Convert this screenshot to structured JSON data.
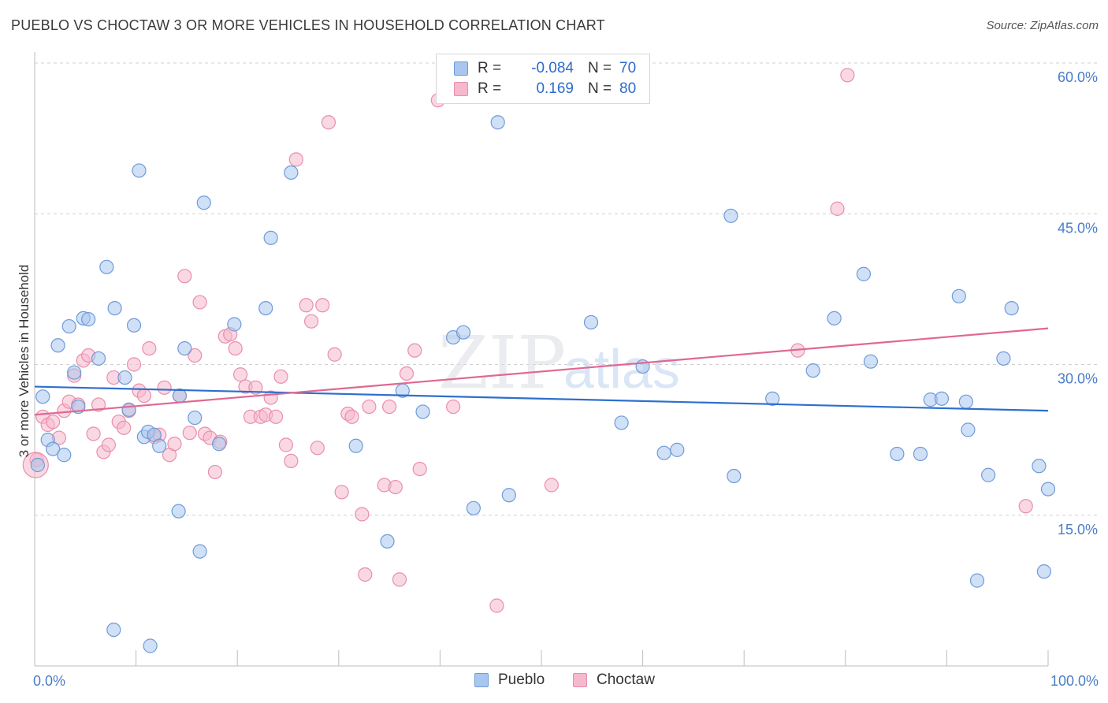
{
  "title": "PUEBLO VS CHOCTAW 3 OR MORE VEHICLES IN HOUSEHOLD CORRELATION CHART",
  "source": "Source: ZipAtlas.com",
  "watermark": {
    "zip": "ZIP",
    "atlas": "atlas"
  },
  "legend": {
    "pueblo": {
      "r_label": "R =",
      "r_value": "-0.084",
      "n_label": "N =",
      "n_value": "70"
    },
    "choctaw": {
      "r_label": "R =",
      "r_value": "0.169",
      "n_label": "N =",
      "n_value": "80"
    }
  },
  "bottom_legend": {
    "pueblo": "Pueblo",
    "choctaw": "Choctaw"
  },
  "colors": {
    "pueblo_fill": "#a9c6ef",
    "pueblo_stroke": "#6f9bd8",
    "pueblo_line": "#2e6fce",
    "choctaw_fill": "#f5b8cc",
    "choctaw_stroke": "#e98eab",
    "choctaw_line": "#e06892",
    "axis_text": "#4a7cc7",
    "grid": "#d0d0d0"
  },
  "chart_data": {
    "type": "scatter",
    "title": "PUEBLO VS CHOCTAW 3 OR MORE VEHICLES IN HOUSEHOLD CORRELATION CHART",
    "xlabel": "",
    "ylabel": "3 or more Vehicles in Household",
    "xlim": [
      0,
      100
    ],
    "ylim": [
      0,
      60
    ],
    "x_tick_labels": [
      "0.0%",
      "100.0%"
    ],
    "y_ticks": [
      15,
      30,
      45,
      60
    ],
    "y_tick_labels": [
      "15.0%",
      "30.0%",
      "45.0%",
      "60.0%"
    ],
    "series": [
      {
        "name": "Pueblo",
        "trend": {
          "x": [
            0,
            100
          ],
          "y": [
            27.8,
            25.4
          ]
        },
        "points": [
          [
            0.3,
            20.0
          ],
          [
            0.8,
            26.8
          ],
          [
            1.3,
            22.5
          ],
          [
            1.8,
            21.6
          ],
          [
            2.3,
            31.9
          ],
          [
            2.9,
            21.0
          ],
          [
            3.4,
            33.8
          ],
          [
            3.9,
            29.2
          ],
          [
            4.3,
            25.8
          ],
          [
            4.8,
            34.6
          ],
          [
            5.3,
            34.5
          ],
          [
            6.3,
            30.6
          ],
          [
            7.1,
            39.7
          ],
          [
            7.9,
            35.6
          ],
          [
            8.9,
            28.7
          ],
          [
            9.3,
            25.5
          ],
          [
            9.8,
            33.9
          ],
          [
            10.3,
            49.3
          ],
          [
            10.8,
            22.8
          ],
          [
            11.2,
            23.3
          ],
          [
            11.8,
            23.0
          ],
          [
            12.3,
            21.9
          ],
          [
            14.3,
            26.9
          ],
          [
            14.8,
            31.6
          ],
          [
            15.8,
            24.7
          ],
          [
            16.7,
            46.1
          ],
          [
            18.2,
            22.1
          ],
          [
            19.7,
            34.0
          ],
          [
            22.8,
            35.6
          ],
          [
            23.3,
            42.6
          ],
          [
            25.3,
            49.1
          ],
          [
            7.8,
            3.6
          ],
          [
            11.4,
            2.0
          ],
          [
            14.2,
            15.4
          ],
          [
            16.3,
            11.4
          ],
          [
            31.7,
            21.9
          ],
          [
            34.8,
            12.4
          ],
          [
            36.3,
            27.4
          ],
          [
            38.3,
            25.3
          ],
          [
            41.3,
            32.7
          ],
          [
            42.3,
            33.2
          ],
          [
            43.3,
            15.7
          ],
          [
            45.7,
            54.1
          ],
          [
            46.8,
            17.0
          ],
          [
            54.9,
            34.2
          ],
          [
            57.9,
            24.2
          ],
          [
            60.0,
            29.8
          ],
          [
            62.1,
            21.2
          ],
          [
            63.4,
            21.5
          ],
          [
            68.7,
            44.8
          ],
          [
            69.0,
            18.9
          ],
          [
            72.8,
            26.6
          ],
          [
            76.8,
            29.4
          ],
          [
            78.9,
            34.6
          ],
          [
            81.8,
            39.0
          ],
          [
            82.5,
            30.3
          ],
          [
            85.1,
            21.1
          ],
          [
            87.4,
            21.1
          ],
          [
            88.4,
            26.5
          ],
          [
            89.5,
            26.6
          ],
          [
            91.2,
            36.8
          ],
          [
            91.9,
            26.3
          ],
          [
            92.1,
            23.5
          ],
          [
            93.0,
            8.5
          ],
          [
            94.1,
            19.0
          ],
          [
            95.6,
            30.6
          ],
          [
            96.4,
            35.6
          ],
          [
            99.1,
            19.9
          ],
          [
            99.6,
            9.4
          ],
          [
            100.0,
            17.6
          ]
        ]
      },
      {
        "name": "Choctaw",
        "trend": {
          "x": [
            0,
            100
          ],
          "y": [
            25.0,
            33.6
          ]
        },
        "points": [
          [
            0.2,
            20.5
          ],
          [
            0.8,
            24.8
          ],
          [
            1.3,
            24.0
          ],
          [
            1.8,
            24.3
          ],
          [
            2.4,
            22.7
          ],
          [
            2.9,
            25.4
          ],
          [
            3.4,
            26.3
          ],
          [
            3.9,
            28.9
          ],
          [
            4.3,
            26.0
          ],
          [
            4.8,
            30.4
          ],
          [
            5.3,
            30.9
          ],
          [
            5.8,
            23.1
          ],
          [
            6.3,
            26.0
          ],
          [
            6.8,
            21.3
          ],
          [
            7.3,
            22.0
          ],
          [
            7.8,
            28.7
          ],
          [
            8.3,
            24.3
          ],
          [
            8.8,
            23.7
          ],
          [
            9.3,
            25.4
          ],
          [
            9.8,
            30.0
          ],
          [
            10.3,
            27.4
          ],
          [
            10.8,
            26.9
          ],
          [
            11.3,
            31.6
          ],
          [
            11.8,
            22.8
          ],
          [
            12.3,
            23.0
          ],
          [
            12.8,
            27.7
          ],
          [
            13.3,
            21.0
          ],
          [
            13.8,
            22.1
          ],
          [
            14.3,
            26.9
          ],
          [
            14.8,
            38.8
          ],
          [
            15.3,
            23.2
          ],
          [
            15.8,
            30.9
          ],
          [
            16.3,
            36.2
          ],
          [
            16.8,
            23.1
          ],
          [
            17.3,
            22.7
          ],
          [
            17.8,
            19.3
          ],
          [
            18.3,
            22.3
          ],
          [
            18.8,
            32.8
          ],
          [
            19.3,
            33.0
          ],
          [
            19.8,
            31.6
          ],
          [
            20.3,
            29.0
          ],
          [
            20.8,
            27.8
          ],
          [
            21.3,
            24.8
          ],
          [
            21.8,
            27.7
          ],
          [
            22.3,
            24.8
          ],
          [
            22.8,
            25.0
          ],
          [
            23.3,
            26.7
          ],
          [
            23.8,
            24.8
          ],
          [
            24.3,
            28.8
          ],
          [
            24.8,
            22.0
          ],
          [
            25.3,
            20.4
          ],
          [
            25.8,
            50.4
          ],
          [
            26.8,
            35.9
          ],
          [
            27.3,
            34.3
          ],
          [
            27.9,
            21.7
          ],
          [
            28.4,
            35.9
          ],
          [
            29.0,
            54.1
          ],
          [
            29.6,
            31.0
          ],
          [
            30.3,
            17.3
          ],
          [
            30.9,
            25.1
          ],
          [
            31.3,
            24.8
          ],
          [
            32.3,
            15.1
          ],
          [
            32.6,
            9.1
          ],
          [
            33.0,
            25.8
          ],
          [
            34.5,
            18.0
          ],
          [
            35.0,
            25.8
          ],
          [
            35.6,
            17.8
          ],
          [
            36.0,
            8.6
          ],
          [
            36.7,
            29.1
          ],
          [
            37.5,
            31.4
          ],
          [
            38.0,
            19.6
          ],
          [
            39.8,
            56.3
          ],
          [
            41.3,
            25.8
          ],
          [
            45.6,
            6.0
          ],
          [
            51.0,
            18.0
          ],
          [
            75.3,
            31.4
          ],
          [
            79.2,
            45.5
          ],
          [
            80.2,
            58.8
          ],
          [
            97.8,
            15.9
          ],
          [
            0.1,
            20.0
          ]
        ]
      }
    ]
  }
}
